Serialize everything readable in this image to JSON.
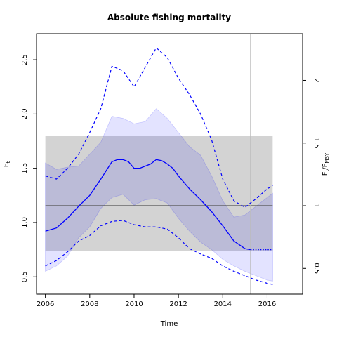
{
  "chart_data": {
    "type": "line",
    "title": "Absolute fishing mortality",
    "xlabel": "Time",
    "ylabel_left": {
      "main": "F",
      "sub": "t"
    },
    "ylabel_right": {
      "a": "F",
      "a_sub": "t",
      "b": "/F",
      "b_sub": "MSY"
    },
    "xlim": [
      2005.6,
      2017.6
    ],
    "ylim": [
      0.34,
      2.74
    ],
    "x_ticks": [
      2006,
      2008,
      2010,
      2012,
      2014,
      2016
    ],
    "x_tick_labels": [
      "2006",
      "2008",
      "2010",
      "2012",
      "2014",
      "2016"
    ],
    "y_ticks": [
      0.5,
      1.0,
      1.5,
      2.0,
      2.5
    ],
    "y_tick_labels": [
      "0.5",
      "1.0",
      "1.5",
      "2.0",
      "2.5"
    ],
    "right_axis_ticks": [
      0.5,
      1,
      1.5,
      2
    ],
    "right_axis_tick_labels": [
      "0.5",
      "1",
      "1.5",
      "2"
    ],
    "right_axis_scale_fmsy": 1.155,
    "last_observed_time": 2015.25,
    "fmsy": {
      "estimate": 1.155,
      "ci": [
        0.74,
        1.8
      ],
      "x_range": [
        2006,
        2016.25
      ]
    },
    "series": [
      {
        "role": "estimate",
        "color": "#0000ff",
        "x": [
          2006,
          2006.5,
          2007,
          2007.5,
          2008,
          2008.5,
          2009,
          2009.25,
          2009.5,
          2009.75,
          2010,
          2010.25,
          2010.5,
          2010.75,
          2011,
          2011.25,
          2011.5,
          2011.75,
          2012,
          2012.5,
          2013,
          2013.5,
          2014,
          2014.5,
          2015,
          2015.25
        ],
        "y": [
          0.92,
          0.95,
          1.04,
          1.15,
          1.25,
          1.4,
          1.56,
          1.58,
          1.58,
          1.56,
          1.5,
          1.5,
          1.52,
          1.54,
          1.58,
          1.57,
          1.54,
          1.5,
          1.43,
          1.31,
          1.21,
          1.1,
          0.97,
          0.83,
          0.76,
          0.75
        ]
      },
      {
        "role": "forecast",
        "color": "#0000ff",
        "x": [
          2015.25,
          2015.5,
          2016,
          2016.25
        ],
        "y": [
          0.75,
          0.75,
          0.75,
          0.75
        ]
      },
      {
        "role": "ci_lower",
        "color": "#0000ff",
        "x": [
          2006,
          2006.5,
          2007,
          2007.5,
          2008,
          2008.5,
          2009,
          2009.5,
          2010,
          2010.5,
          2011,
          2011.5,
          2012,
          2012.5,
          2013,
          2013.5,
          2014,
          2014.5,
          2015,
          2015.5,
          2016,
          2016.25
        ],
        "y": [
          0.6,
          0.65,
          0.73,
          0.83,
          0.88,
          0.97,
          1.01,
          1.02,
          0.98,
          0.96,
          0.96,
          0.94,
          0.86,
          0.76,
          0.71,
          0.67,
          0.6,
          0.55,
          0.51,
          0.47,
          0.44,
          0.43
        ]
      },
      {
        "role": "ci_upper",
        "color": "#0000ff",
        "x": [
          2006,
          2006.5,
          2007,
          2007.5,
          2008,
          2008.5,
          2009,
          2009.5,
          2010,
          2010.5,
          2011,
          2011.5,
          2012,
          2012.5,
          2013,
          2013.5,
          2014,
          2014.5,
          2015,
          2015.5,
          2016,
          2016.25
        ],
        "y": [
          1.43,
          1.4,
          1.5,
          1.63,
          1.83,
          2.05,
          2.44,
          2.4,
          2.25,
          2.43,
          2.61,
          2.52,
          2.33,
          2.18,
          2.0,
          1.76,
          1.4,
          1.2,
          1.14,
          1.22,
          1.31,
          1.34
        ]
      },
      {
        "role": "ci_band",
        "color": "#0000ff",
        "x": [
          2006,
          2006.5,
          2007,
          2007.5,
          2008,
          2008.5,
          2009,
          2009.5,
          2010,
          2010.5,
          2011,
          2011.5,
          2012,
          2012.5,
          2013,
          2013.5,
          2014,
          2014.5,
          2015,
          2015.5,
          2016,
          2016.25
        ],
        "upper": [
          1.55,
          1.49,
          1.51,
          1.52,
          1.63,
          1.74,
          1.98,
          1.96,
          1.91,
          1.93,
          2.05,
          1.96,
          1.83,
          1.7,
          1.62,
          1.43,
          1.2,
          1.05,
          1.07,
          1.15,
          1.23,
          1.27
        ],
        "lower": [
          0.55,
          0.6,
          0.69,
          0.86,
          0.96,
          1.13,
          1.23,
          1.26,
          1.16,
          1.21,
          1.22,
          1.18,
          1.04,
          0.92,
          0.82,
          0.75,
          0.66,
          0.6,
          0.55,
          0.51,
          0.47,
          0.46
        ]
      }
    ],
    "grid": false,
    "legend": "none"
  }
}
